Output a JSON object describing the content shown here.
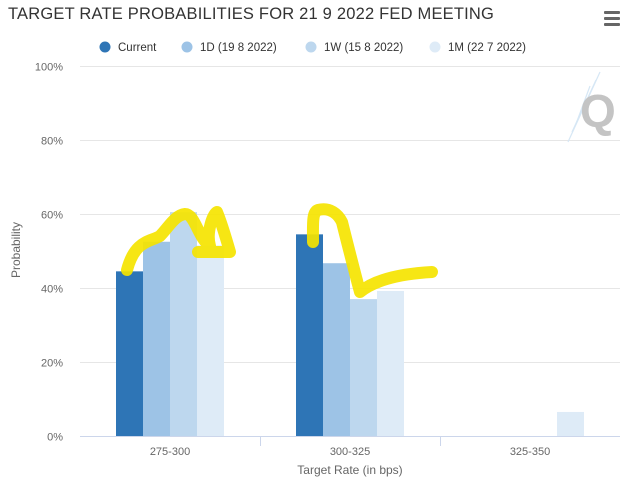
{
  "page": {
    "title": "TARGET RATE PROBABILITIES FOR 21 9 2022 FED MEETING",
    "menu_icon": "hamburger-menu-icon",
    "watermark_icon": "quikstrike-q-logo-icon"
  },
  "chart_data": {
    "type": "bar",
    "title": "TARGET RATE PROBABILITIES FOR 21 9 2022 FED MEETING",
    "xlabel": "Target Rate (in bps)",
    "ylabel": "Probability",
    "categories": [
      "275-300",
      "300-325",
      "325-350"
    ],
    "ylim": [
      0,
      100
    ],
    "yticks": [
      "0%",
      "20%",
      "40%",
      "60%",
      "80%",
      "100%"
    ],
    "grid": "horizontal",
    "legend_position": "top",
    "series": [
      {
        "name": "Current",
        "color": "#2e75b6",
        "values": [
          44.5,
          54.5,
          0
        ]
      },
      {
        "name": "1D (19 8 2022)",
        "color": "#9dc3e6",
        "values": [
          52.5,
          46.7,
          0
        ]
      },
      {
        "name": "1W (15 8 2022)",
        "color": "#bdd7ee",
        "values": [
          60.5,
          37.0,
          0
        ]
      },
      {
        "name": "1M (22 7 2022)",
        "color": "#deebf7",
        "values": [
          51.5,
          39.2,
          6.5
        ]
      }
    ],
    "annotations": {
      "highlight_color": "#f5e400",
      "description": "yellow hand-drawn strokes over bar tops"
    }
  }
}
